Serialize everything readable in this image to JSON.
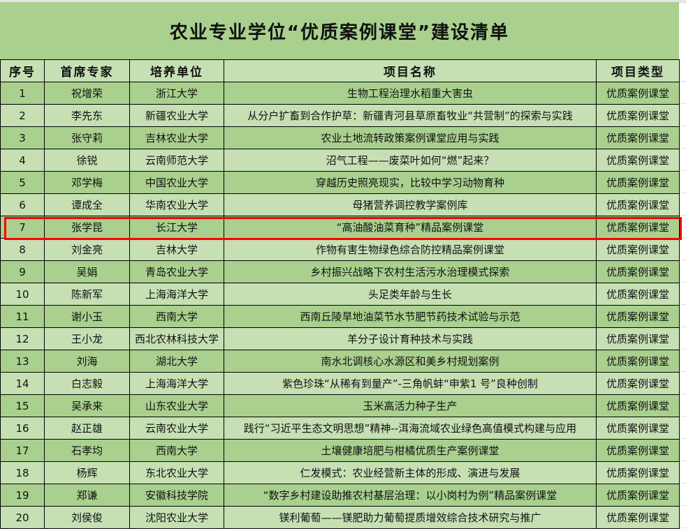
{
  "title": "农业专业学位“优质案例课堂”建设清单",
  "headers": [
    "序号",
    "首席专家",
    "培养单位",
    "项目名称",
    "项目类型"
  ],
  "rows": [
    {
      "no": "1",
      "expert": "祝增荣",
      "unit": "浙江大学",
      "project": "生物工程治理水稻重大害虫",
      "type": "优质案例课堂"
    },
    {
      "no": "2",
      "expert": "李先东",
      "unit": "新疆农业大学",
      "project": "从分户扩畜到合作护草：新疆青河县草原畜牧业“共营制”的探索与实践",
      "type": "优质案例课堂"
    },
    {
      "no": "3",
      "expert": "张守莉",
      "unit": "吉林农业大学",
      "project": "农业土地流转政策案例课堂应用与实践",
      "type": "优质案例课堂"
    },
    {
      "no": "4",
      "expert": "徐锐",
      "unit": "云南师范大学",
      "project": "沼气工程——废菜叶如何“燃”起来？",
      "type": "优质案例课堂"
    },
    {
      "no": "5",
      "expert": "邓学梅",
      "unit": "中国农业大学",
      "project": "穿越历史照亮现实，比较中学习动物育种",
      "type": "优质案例课堂"
    },
    {
      "no": "6",
      "expert": "谭成全",
      "unit": "华南农业大学",
      "project": "母猪营养调控教学案例库",
      "type": "优质案例课堂"
    },
    {
      "no": "7",
      "expert": "张学昆",
      "unit": "长江大学",
      "project": "“高油酸油菜育种”精品案例课堂",
      "type": "优质案例课堂"
    },
    {
      "no": "8",
      "expert": "刘金亮",
      "unit": "吉林大学",
      "project": "作物有害生物绿色综合防控精品案例课堂",
      "type": "优质案例课堂"
    },
    {
      "no": "9",
      "expert": "吴娟",
      "unit": "青岛农业大学",
      "project": "乡村振兴战略下农村生活污水治理模式探索",
      "type": "优质案例课堂"
    },
    {
      "no": "10",
      "expert": "陈新军",
      "unit": "上海海洋大学",
      "project": "头足类年龄与生长",
      "type": "优质案例课堂"
    },
    {
      "no": "11",
      "expert": "谢小玉",
      "unit": "西南大学",
      "project": "西南丘陵旱地油菜节水节肥节药技术试验与示范",
      "type": "优质案例课堂"
    },
    {
      "no": "12",
      "expert": "王小龙",
      "unit": "西北农林科技大学",
      "project": "羊分子设计育种技术与实践",
      "type": "优质案例课堂"
    },
    {
      "no": "13",
      "expert": "刘海",
      "unit": "湖北大学",
      "project": "南水北调核心水源区和美乡村规划案例",
      "type": "优质案例课堂"
    },
    {
      "no": "14",
      "expert": "白志毅",
      "unit": "上海海洋大学",
      "project": "紫色珍珠“从稀有到量产”-三角帆蚌“申紫1 号”良种创制",
      "type": "优质案例课堂"
    },
    {
      "no": "15",
      "expert": "吴承来",
      "unit": "山东农业大学",
      "project": "玉米高活力种子生产",
      "type": "优质案例课堂"
    },
    {
      "no": "16",
      "expert": "赵正雄",
      "unit": "云南农业大学",
      "project": "践行“习近平生态文明思想”精神--洱海流域农业绿色高值模式构建与应用",
      "type": "优质案例课堂"
    },
    {
      "no": "17",
      "expert": "石孝均",
      "unit": "西南大学",
      "project": "土壤健康培肥与柑橘优质生产案例课堂",
      "type": "优质案例课堂"
    },
    {
      "no": "18",
      "expert": "杨辉",
      "unit": "东北农业大学",
      "project": "仁发模式：农业经营新主体的形成、演进与发展",
      "type": "优质案例课堂"
    },
    {
      "no": "19",
      "expert": "郑谦",
      "unit": "安徽科技学院",
      "project": "“数字乡村建设助推农村基层治理：以小岗村为例”精品案例课堂",
      "type": "优质案例课堂"
    },
    {
      "no": "20",
      "expert": "刘侯俊",
      "unit": "沈阳农业大学",
      "project": "镁利葡萄——镁肥助力葡萄提质增效综合技术研究与推广",
      "type": "优质案例课堂"
    }
  ],
  "highlighted_row": "7",
  "colors": {
    "title_bg": "#a9d08e",
    "row_dark": "#a9d08e",
    "row_light": "#c6e0b4",
    "highlight": "#ff0000"
  }
}
